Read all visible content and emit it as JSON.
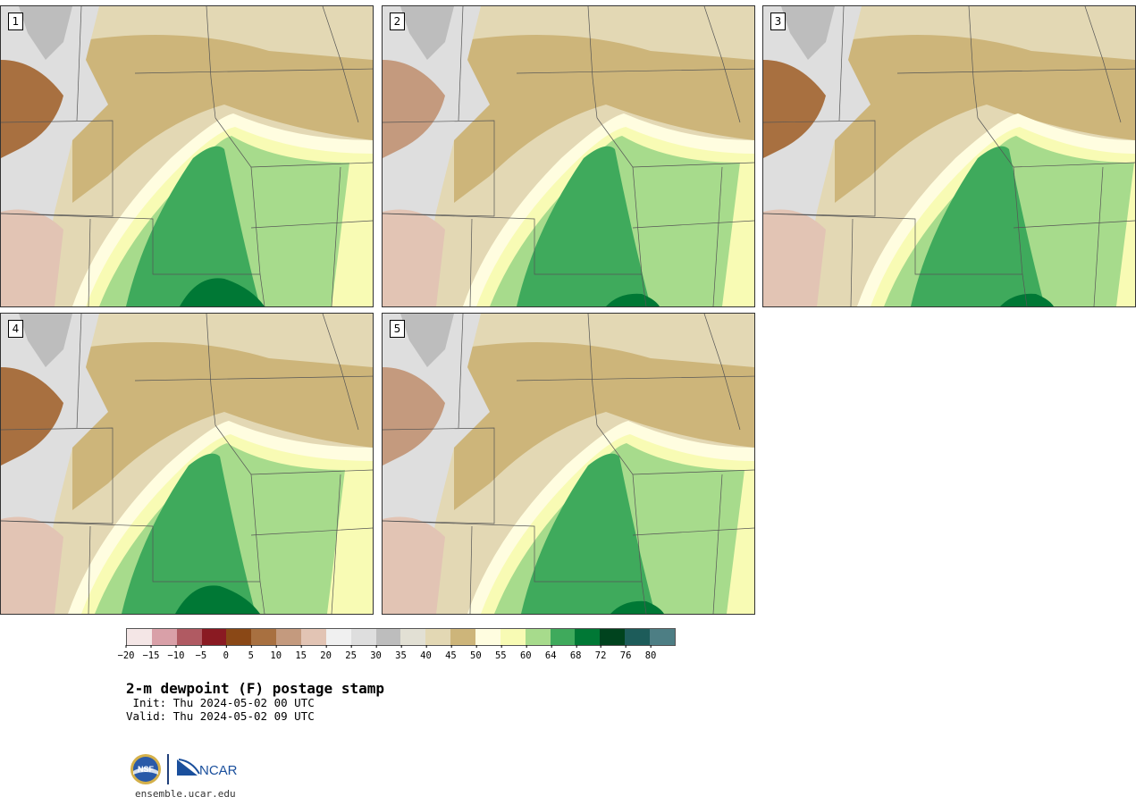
{
  "panels": [
    {
      "label": "1"
    },
    {
      "label": "2"
    },
    {
      "label": "3"
    },
    {
      "label": "4"
    },
    {
      "label": "5"
    }
  ],
  "legend": {
    "colors": [
      "#f4e6e6",
      "#d9a0a8",
      "#b05a62",
      "#8a1a22",
      "#8a4816",
      "#a87040",
      "#c49a7e",
      "#e2c4b4",
      "#f0f0f0",
      "#dedede",
      "#bdbdbd",
      "#e2e0d4",
      "#e3d8b4",
      "#cdb57a",
      "#fffde0",
      "#f8fbb4",
      "#a7db8c",
      "#3faa5c",
      "#007835",
      "#00431e",
      "#1d5c5a",
      "#4d7e84"
    ],
    "ticks": [
      "−20",
      "−15",
      "−10",
      "−5",
      "0",
      "5",
      "10",
      "15",
      "20",
      "25",
      "30",
      "35",
      "40",
      "45",
      "50",
      "55",
      "60",
      "64",
      "68",
      "72",
      "76",
      "80"
    ]
  },
  "info": {
    "title": "2-m dewpoint (F) postage stamp",
    "init": " Init: Thu 2024-05-02 00 UTC",
    "valid": "Valid: Thu 2024-05-02 09 UTC"
  },
  "logos": {
    "nsf_text": "NSF",
    "ncar_text": "NCAR"
  },
  "url": "ensemble.ucar.edu"
}
